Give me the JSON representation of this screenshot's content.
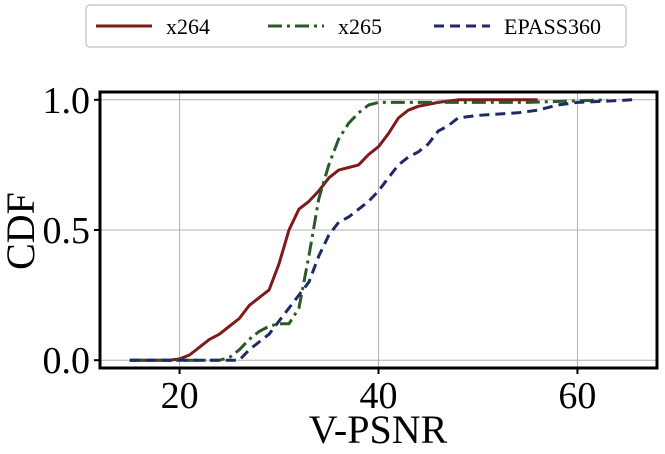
{
  "chart_data": {
    "type": "line",
    "xlabel": "V-PSNR",
    "ylabel": "CDF",
    "xlim": [
      12,
      68
    ],
    "ylim": [
      -0.03,
      1.03
    ],
    "xticks": [
      20,
      40,
      60
    ],
    "xtick_labels": [
      "20",
      "40",
      "60"
    ],
    "yticks": [
      0.0,
      0.5,
      1.0
    ],
    "ytick_labels": [
      "0.0",
      "0.5",
      "1.0"
    ],
    "grid": true,
    "legend_position": "top-center, outside plot",
    "series": [
      {
        "name": "x264",
        "color": "#7f1a1a",
        "dash": "solid",
        "points": [
          [
            15,
            0
          ],
          [
            19,
            0
          ],
          [
            20,
            0.005
          ],
          [
            21,
            0.02
          ],
          [
            22,
            0.05
          ],
          [
            23,
            0.08
          ],
          [
            24,
            0.1
          ],
          [
            25,
            0.13
          ],
          [
            26,
            0.16
          ],
          [
            27,
            0.21
          ],
          [
            28,
            0.24
          ],
          [
            29,
            0.27
          ],
          [
            30,
            0.37
          ],
          [
            31,
            0.5
          ],
          [
            32,
            0.58
          ],
          [
            33,
            0.61
          ],
          [
            34,
            0.65
          ],
          [
            35,
            0.7
          ],
          [
            36,
            0.73
          ],
          [
            37,
            0.74
          ],
          [
            38,
            0.75
          ],
          [
            39,
            0.79
          ],
          [
            40,
            0.82
          ],
          [
            41,
            0.87
          ],
          [
            42,
            0.93
          ],
          [
            43,
            0.96
          ],
          [
            44,
            0.975
          ],
          [
            46,
            0.99
          ],
          [
            48,
            1.0
          ],
          [
            56,
            1.0
          ]
        ]
      },
      {
        "name": "x265",
        "color": "#2a5a2a",
        "dash": "dashdot",
        "points": [
          [
            15,
            0
          ],
          [
            24,
            0
          ],
          [
            25,
            0.01
          ],
          [
            26,
            0.04
          ],
          [
            27,
            0.08
          ],
          [
            28,
            0.11
          ],
          [
            29,
            0.13
          ],
          [
            30,
            0.14
          ],
          [
            31,
            0.14
          ],
          [
            32,
            0.2
          ],
          [
            33,
            0.4
          ],
          [
            34,
            0.62
          ],
          [
            35,
            0.75
          ],
          [
            36,
            0.85
          ],
          [
            37,
            0.91
          ],
          [
            38,
            0.95
          ],
          [
            39,
            0.98
          ],
          [
            40,
            0.99
          ],
          [
            55,
            0.99
          ],
          [
            63,
            1.0
          ]
        ]
      },
      {
        "name": "EPASS360",
        "color": "#1e2a66",
        "dash": "dashed",
        "points": [
          [
            15,
            0
          ],
          [
            26,
            0
          ],
          [
            27,
            0.04
          ],
          [
            28,
            0.07
          ],
          [
            29,
            0.1
          ],
          [
            30,
            0.15
          ],
          [
            31,
            0.2
          ],
          [
            32,
            0.25
          ],
          [
            33,
            0.3
          ],
          [
            34,
            0.4
          ],
          [
            35,
            0.48
          ],
          [
            36,
            0.53
          ],
          [
            37,
            0.55
          ],
          [
            38,
            0.58
          ],
          [
            39,
            0.61
          ],
          [
            40,
            0.65
          ],
          [
            41,
            0.7
          ],
          [
            42,
            0.75
          ],
          [
            43,
            0.78
          ],
          [
            44,
            0.8
          ],
          [
            45,
            0.83
          ],
          [
            46,
            0.88
          ],
          [
            47,
            0.9
          ],
          [
            48,
            0.93
          ],
          [
            50,
            0.94
          ],
          [
            54,
            0.95
          ],
          [
            56,
            0.96
          ],
          [
            58,
            0.98
          ],
          [
            60,
            0.99
          ],
          [
            63,
            0.995
          ],
          [
            65.5,
            1.0
          ]
        ]
      }
    ]
  }
}
